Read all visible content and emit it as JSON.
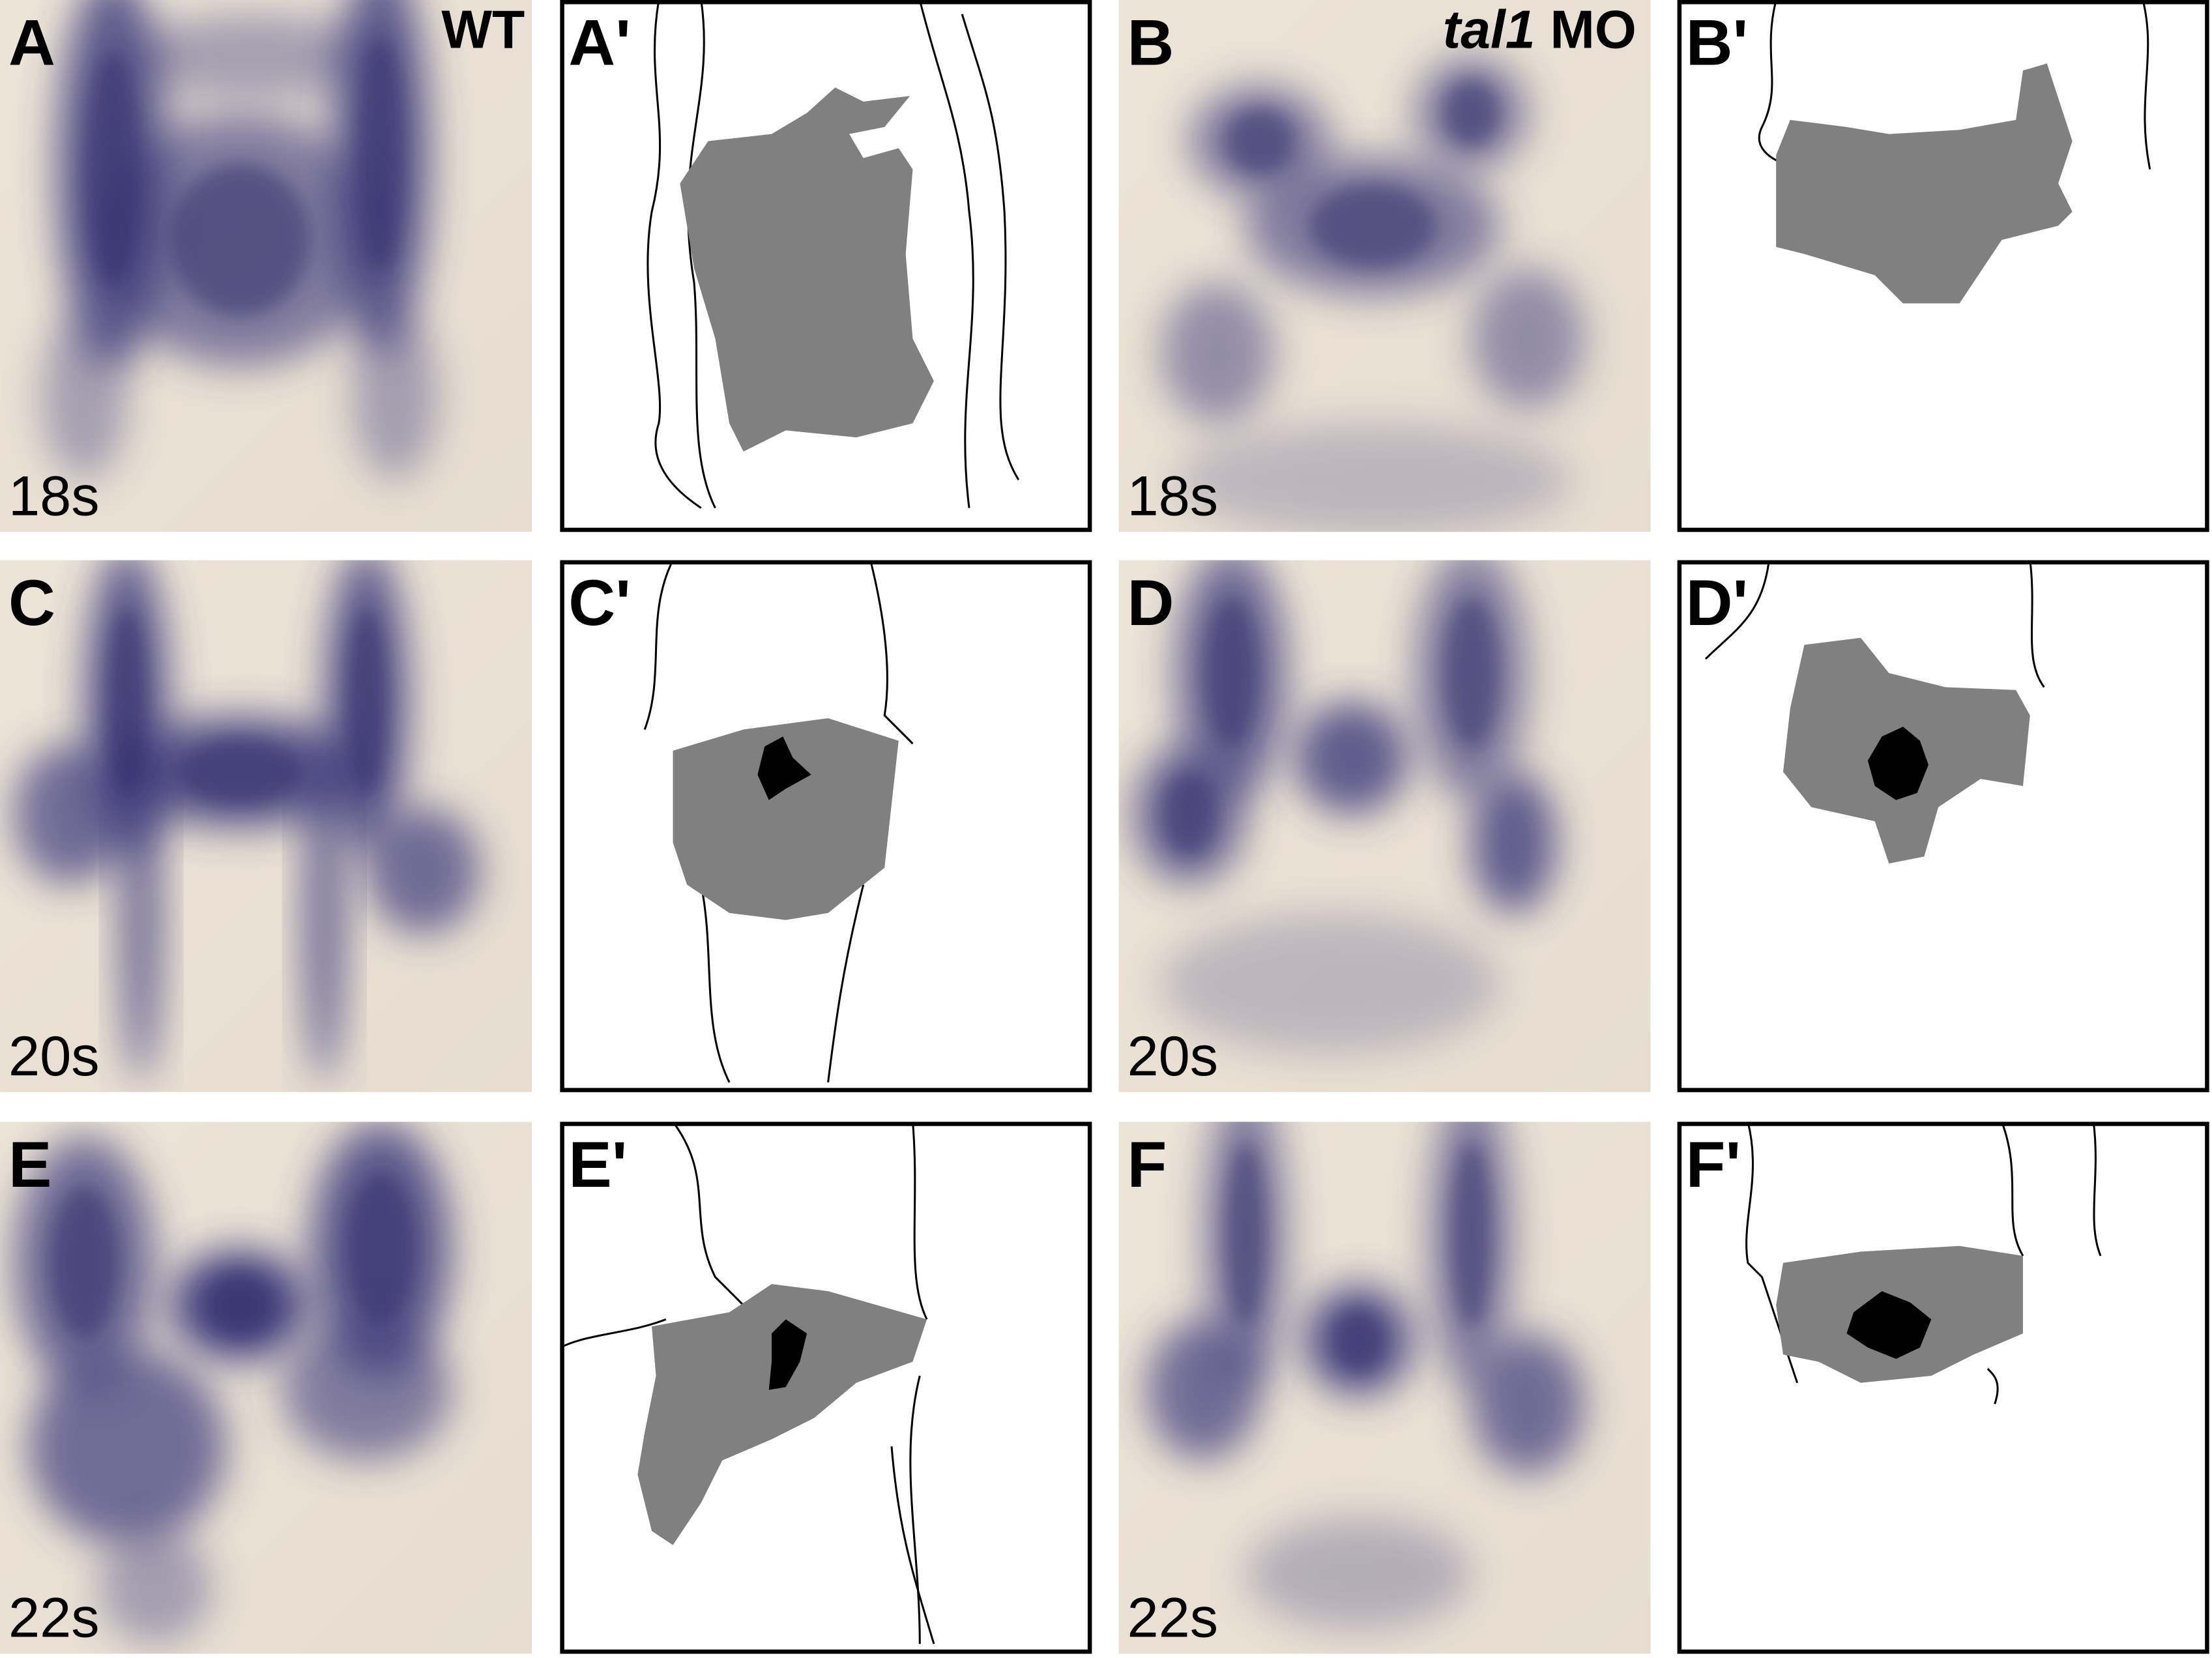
{
  "figure": {
    "headers": {
      "wt": "WT",
      "mo_gene": "tal1",
      "mo_suffix": "MO"
    },
    "panels": [
      {
        "label": "A",
        "stage": "18s"
      },
      {
        "label": "A'"
      },
      {
        "label": "B",
        "stage": "18s"
      },
      {
        "label": "B'"
      },
      {
        "label": "C",
        "stage": "20s"
      },
      {
        "label": "C'"
      },
      {
        "label": "D",
        "stage": "20s"
      },
      {
        "label": "D'"
      },
      {
        "label": "E",
        "stage": "22s"
      },
      {
        "label": "E'"
      },
      {
        "label": "F",
        "stage": "22s"
      },
      {
        "label": "F'"
      }
    ]
  }
}
